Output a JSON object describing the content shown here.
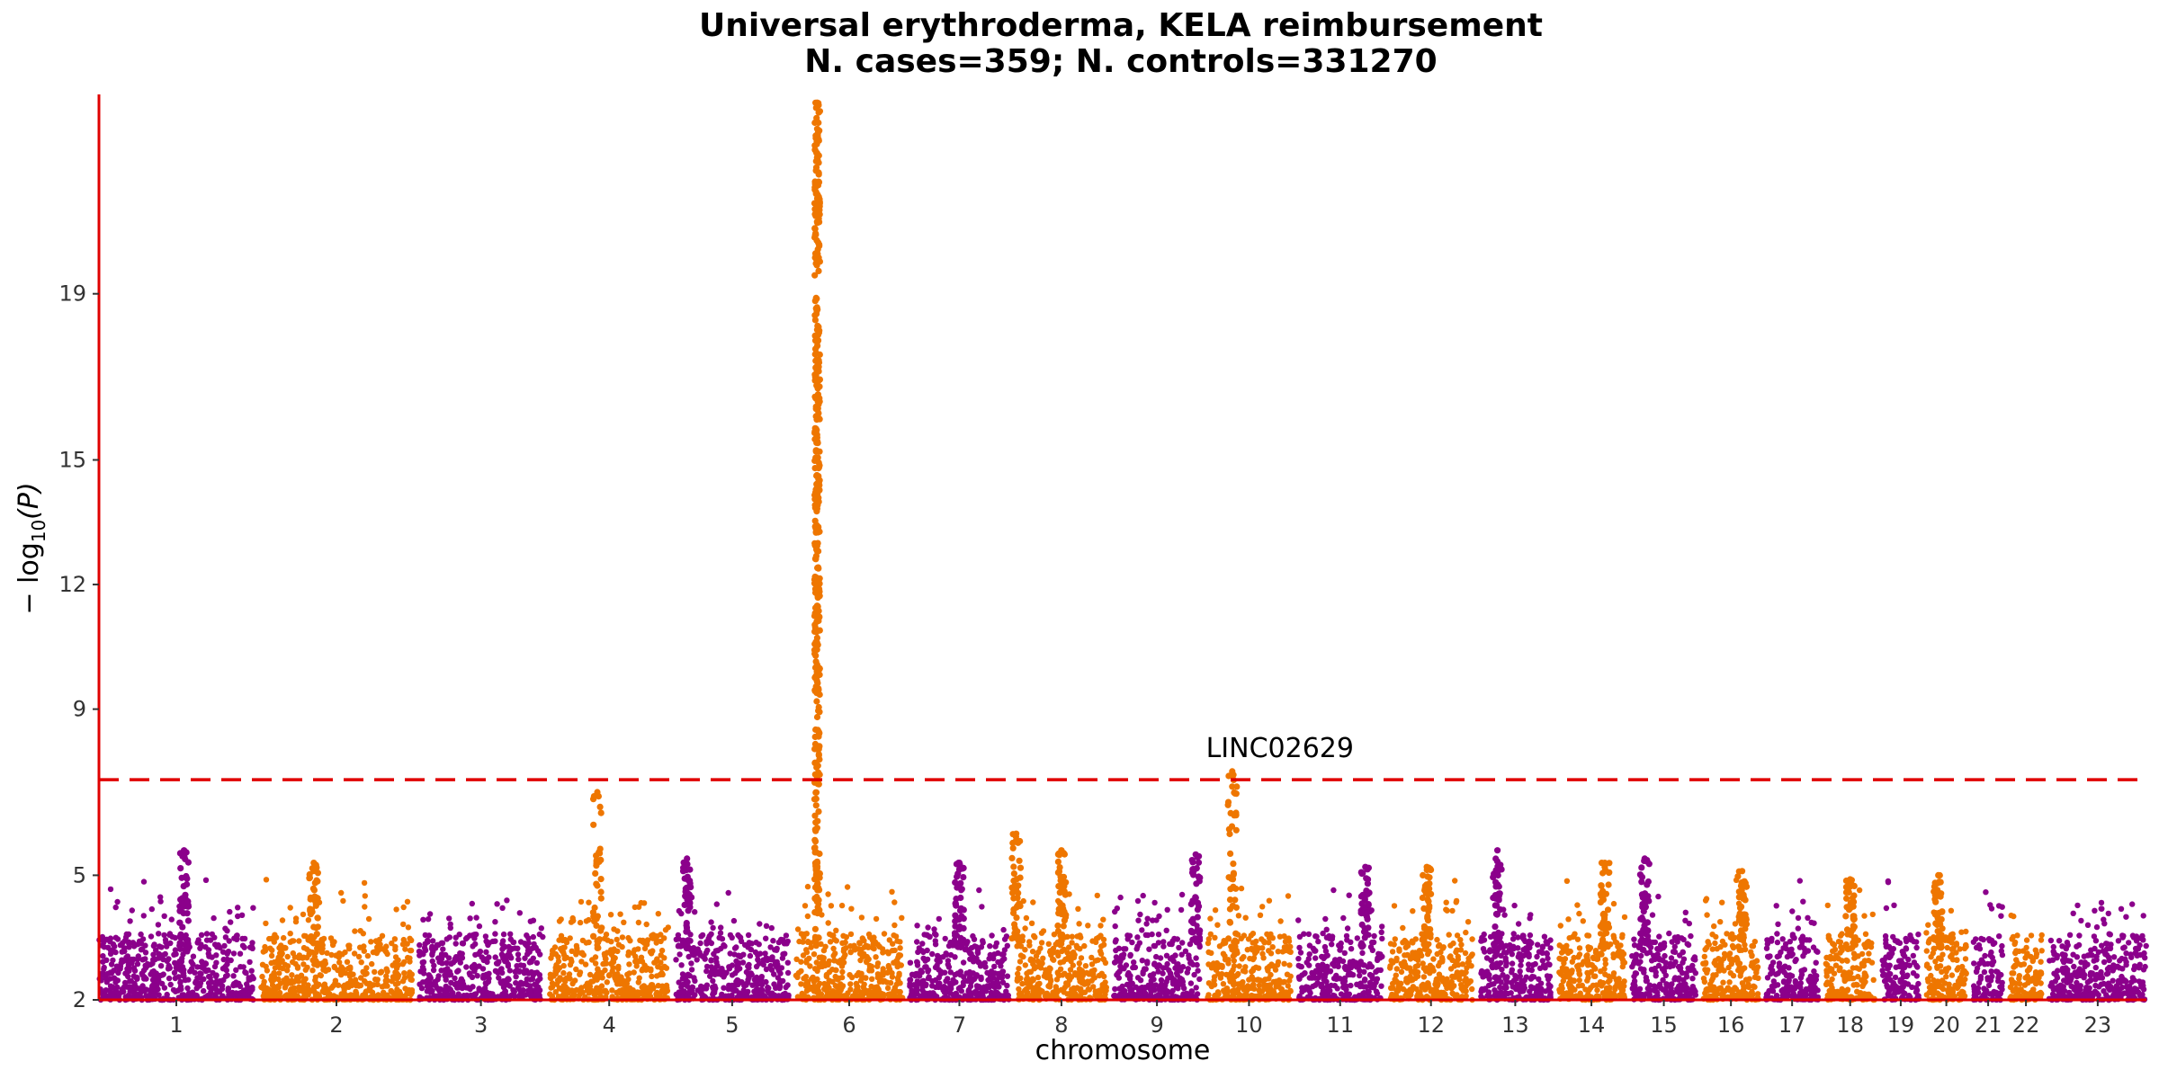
{
  "chart_data": {
    "type": "scatter",
    "title_line1": "Universal erythroderma, KELA reimbursement",
    "title_line2": "N. cases=359; N. controls=331270",
    "xlabel": "chromosome",
    "ylabel_main": "− log",
    "ylabel_sub": "10",
    "ylabel_arg": "(P)",
    "ylim": [
      2,
      23.8
    ],
    "yticks": [
      2,
      5,
      9,
      12,
      15,
      19
    ],
    "significance_threshold": 7.3,
    "grid": false,
    "colors": {
      "odd": "#8b008b",
      "even": "#ee7600",
      "threshold": "#e00000",
      "axis": "#e00000"
    },
    "chromosomes": [
      {
        "label": "1",
        "size": 248
      },
      {
        "label": "2",
        "size": 242
      },
      {
        "label": "3",
        "size": 198
      },
      {
        "label": "4",
        "size": 190
      },
      {
        "label": "5",
        "size": 181
      },
      {
        "label": "6",
        "size": 171
      },
      {
        "label": "7",
        "size": 159
      },
      {
        "label": "8",
        "size": 145
      },
      {
        "label": "9",
        "size": 138
      },
      {
        "label": "10",
        "size": 134
      },
      {
        "label": "11",
        "size": 135
      },
      {
        "label": "12",
        "size": 133
      },
      {
        "label": "13",
        "size": 114
      },
      {
        "label": "14",
        "size": 107
      },
      {
        "label": "15",
        "size": 102
      },
      {
        "label": "16",
        "size": 90
      },
      {
        "label": "17",
        "size": 83
      },
      {
        "label": "18",
        "size": 80
      },
      {
        "label": "19",
        "size": 59
      },
      {
        "label": "20",
        "size": 64
      },
      {
        "label": "21",
        "size": 47
      },
      {
        "label": "22",
        "size": 51
      },
      {
        "label": "23",
        "size": 156
      }
    ],
    "peaks": [
      {
        "chrom": "1",
        "pos": 0.55,
        "max": 5.6
      },
      {
        "chrom": "2",
        "pos": 0.35,
        "max": 5.3
      },
      {
        "chrom": "4",
        "pos": 0.4,
        "max": 7.0
      },
      {
        "chrom": "5",
        "pos": 0.1,
        "max": 5.4
      },
      {
        "chrom": "6",
        "pos": 0.2,
        "max": 23.6
      },
      {
        "chrom": "7",
        "pos": 0.5,
        "max": 5.3
      },
      {
        "chrom": "8",
        "pos": 0.0,
        "max": 6.0
      },
      {
        "chrom": "8",
        "pos": 0.5,
        "max": 5.6
      },
      {
        "chrom": "9",
        "pos": 0.95,
        "max": 5.5
      },
      {
        "chrom": "10",
        "pos": 0.3,
        "max": 7.5
      },
      {
        "chrom": "11",
        "pos": 0.8,
        "max": 5.2
      },
      {
        "chrom": "12",
        "pos": 0.45,
        "max": 5.2
      },
      {
        "chrom": "13",
        "pos": 0.25,
        "max": 5.6
      },
      {
        "chrom": "14",
        "pos": 0.7,
        "max": 5.3
      },
      {
        "chrom": "15",
        "pos": 0.2,
        "max": 5.4
      },
      {
        "chrom": "16",
        "pos": 0.7,
        "max": 5.1
      },
      {
        "chrom": "18",
        "pos": 0.5,
        "max": 4.9
      },
      {
        "chrom": "20",
        "pos": 0.3,
        "max": 5.0
      }
    ],
    "annotations": [
      {
        "label": "LINC02629",
        "chrom": "10",
        "pos": 0.3,
        "y": 7.5
      }
    ]
  }
}
